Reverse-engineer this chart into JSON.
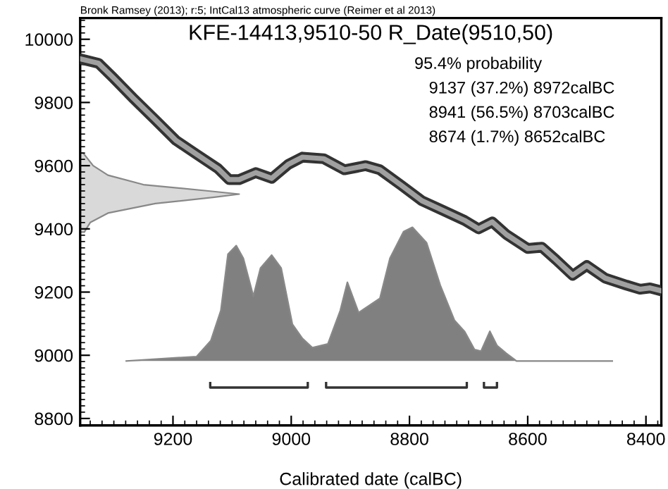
{
  "chart_data": {
    "type": "line",
    "title": "KFE-14413,9510-50 R_Date(9510,50)",
    "xlabel": "Calibrated date (calBC)",
    "annotations": [
      "Bronk Ramsey (2013); r:5; IntCal13 atmospheric curve (Reimer et al 2013)",
      "95.4% probability",
      "9137 (37.2%) 8972calBC",
      "8941 (56.5%) 8703calBC",
      "8674 (1.7%) 8652calBC"
    ],
    "xlim": [
      9357,
      8374
    ],
    "ylim": [
      8778,
      10067
    ],
    "xticks": [
      9200,
      9000,
      8800,
      8600,
      8400
    ],
    "yticks": [
      8800,
      9000,
      9200,
      9400,
      9600,
      9800,
      10000
    ],
    "grid": false,
    "series": [
      {
        "color": "#333333",
        "x": [
          9357,
          9326,
          9302,
          9267,
          9231,
          9195,
          9160,
          9124,
          9105,
          9088,
          9060,
          9033,
          9005,
          8981,
          8945,
          8910,
          8874,
          8850,
          8814,
          8779,
          8743,
          8707,
          8683,
          8660,
          8636,
          8600,
          8576,
          8552,
          8524,
          8500,
          8469,
          8433,
          8410,
          8393,
          8374
        ],
        "values": [
          9938,
          9924,
          9880,
          9813,
          9747,
          9680,
          9636,
          9591,
          9556,
          9556,
          9578,
          9560,
          9604,
          9627,
          9622,
          9587,
          9600,
          9587,
          9538,
          9489,
          9458,
          9427,
          9400,
          9422,
          9382,
          9338,
          9342,
          9302,
          9253,
          9284,
          9244,
          9222,
          9209,
          9213,
          9204
        ]
      },
      {
        "type": "area",
        "color": "#d9d9d9",
        "x": [
          9355,
          9350,
          9340,
          9310,
          9230,
          9130,
          9088,
          9140,
          9250,
          9310,
          9335,
          9352,
          9355
        ],
        "values": [
          9390,
          9390,
          9420,
          9450,
          9480,
          9500,
          9510,
          9520,
          9540,
          9570,
          9600,
          9640,
          9640
        ]
      },
      {
        "type": "area",
        "color": "#808080",
        "x": [
          9279,
          9160,
          9136,
          9119,
          9107,
          9093,
          9081,
          9064,
          9052,
          9033,
          9017,
          8998,
          8981,
          8964,
          8938,
          8917,
          8905,
          8886,
          8850,
          8833,
          8810,
          8795,
          8771,
          8748,
          8724,
          8707,
          8690,
          8679,
          8664,
          8652,
          8636,
          8619,
          8457
        ],
        "values": [
          8982,
          8996,
          9046,
          9142,
          9320,
          9347,
          9307,
          9187,
          9276,
          9317,
          9276,
          9098,
          9053,
          9024,
          9036,
          9142,
          9231,
          9135,
          9180,
          9307,
          9391,
          9405,
          9356,
          9222,
          9111,
          9076,
          9018,
          9013,
          9076,
          9031,
          9006,
          8982,
          8982
        ]
      },
      {
        "type": "line",
        "color": "#333333",
        "x": [
          9137,
          9137,
          8972,
          8972
        ],
        "values": [
          8912,
          8898,
          8898,
          8912
        ]
      },
      {
        "type": "line",
        "color": "#333333",
        "x": [
          8941,
          8941,
          8703,
          8703
        ],
        "values": [
          8912,
          8898,
          8898,
          8912
        ]
      },
      {
        "type": "line",
        "color": "#333333",
        "x": [
          8674,
          8674,
          8652,
          8652
        ],
        "values": [
          8912,
          8898,
          8898,
          8912
        ]
      }
    ]
  }
}
